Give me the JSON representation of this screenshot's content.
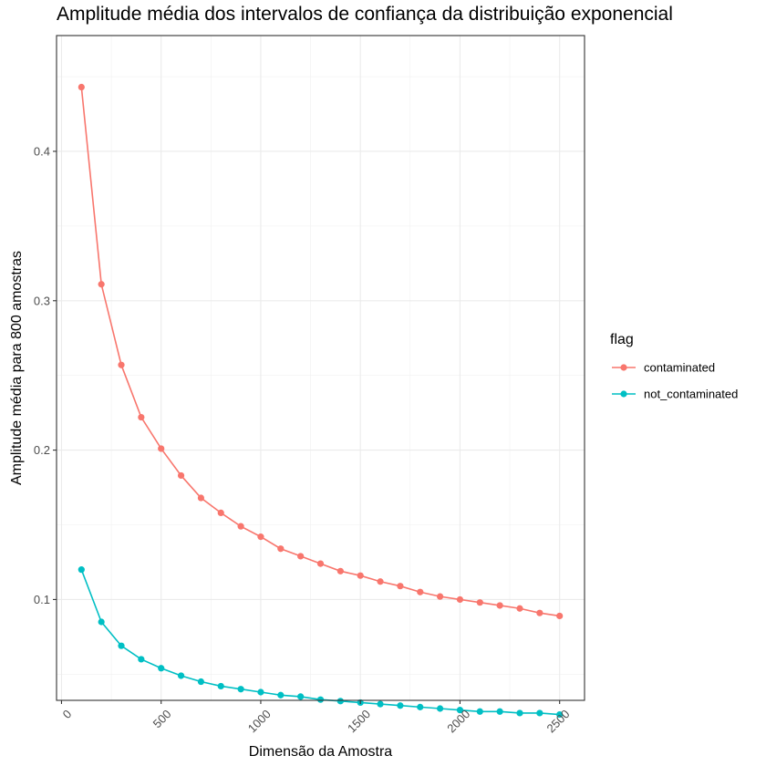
{
  "chart_data": {
    "type": "line",
    "title": "Amplitude média dos intervalos de confiança da distribuição exponencial",
    "xlabel": "Dimensão da Amostra",
    "ylabel": "Amplitude média para 800 amostras",
    "xlim": [
      -25,
      2625
    ],
    "ylim": [
      0.0325,
      0.4775
    ],
    "xticks": [
      0,
      500,
      1000,
      1500,
      2000,
      2500
    ],
    "xtick_labels": [
      "0",
      "500",
      "1000",
      "1500",
      "2000",
      "2500"
    ],
    "yticks": [
      0.1,
      0.2,
      0.3,
      0.4
    ],
    "ytick_labels": [
      "0.1",
      "0.2",
      "0.3",
      "0.4"
    ],
    "grid": true,
    "legend": {
      "title": "flag",
      "position": "right"
    },
    "x": [
      100,
      200,
      300,
      400,
      500,
      600,
      700,
      800,
      900,
      1000,
      1100,
      1200,
      1300,
      1400,
      1500,
      1600,
      1700,
      1800,
      1900,
      2000,
      2100,
      2200,
      2300,
      2400,
      2500
    ],
    "series": [
      {
        "name": "contaminated",
        "color": "#F8766D",
        "values": [
          0.443,
          0.311,
          0.257,
          0.222,
          0.201,
          0.183,
          0.168,
          0.158,
          0.149,
          0.142,
          0.134,
          0.129,
          0.124,
          0.119,
          0.116,
          0.112,
          0.109,
          0.105,
          0.102,
          0.1,
          0.098,
          0.096,
          0.094,
          0.091,
          0.089
        ]
      },
      {
        "name": "not_contaminated",
        "color": "#00BFC4",
        "values": [
          0.12,
          0.085,
          0.069,
          0.06,
          0.054,
          0.049,
          0.045,
          0.042,
          0.04,
          0.038,
          0.036,
          0.035,
          0.033,
          0.032,
          0.031,
          0.03,
          0.029,
          0.028,
          0.027,
          0.026,
          0.025,
          0.025,
          0.024,
          0.024,
          0.023
        ]
      }
    ]
  }
}
